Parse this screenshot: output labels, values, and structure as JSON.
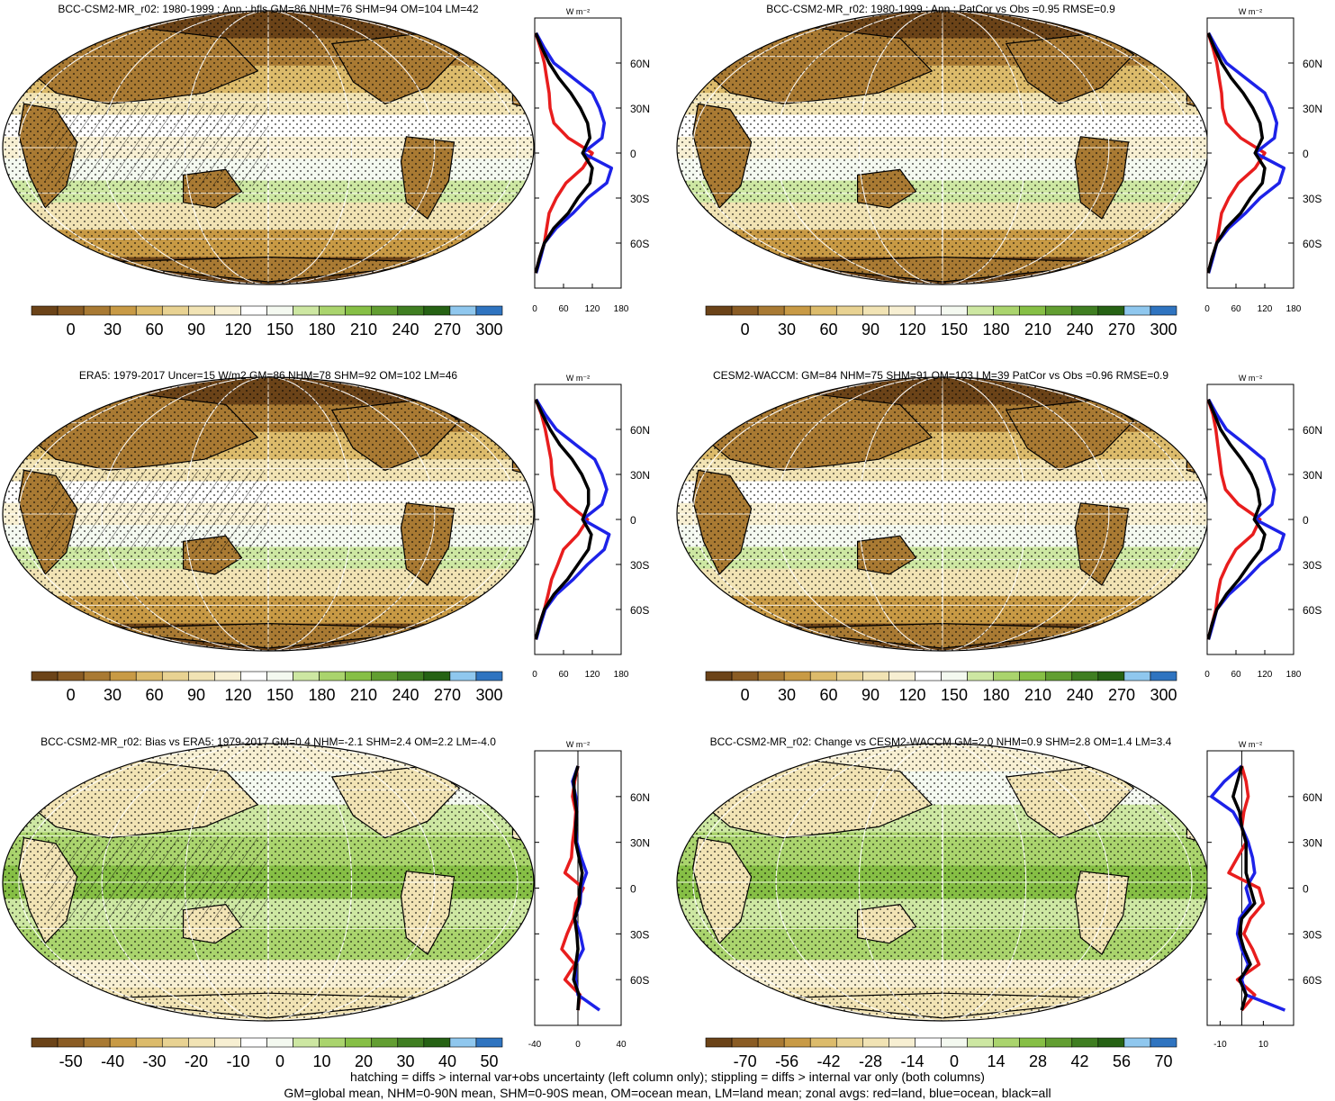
{
  "legend": {
    "line1": "hatching = diffs > internal var+obs uncertainty (left column only); stippling = diffs > internal var only (both columns)",
    "line2": "GM=global mean, NHM=0-90N mean, SHM=0-90S mean, OM=ocean mean, LM=land mean; zonal avgs: red=land, blue=ocean, black=all"
  },
  "colors": {
    "zonal_land": "#e81d1d",
    "zonal_ocean": "#1d22e8",
    "zonal_all": "#000000",
    "abs_scale": [
      "#6b4318",
      "#8a5c24",
      "#a97a33",
      "#c89a45",
      "#dcbb6b",
      "#e8d292",
      "#f1e3b4",
      "#f7efd2",
      "#ffffff",
      "#f4f9f0",
      "#cde7a2",
      "#aad46d",
      "#86bf45",
      "#629e31",
      "#3f7e21",
      "#266214",
      "#8fc7ee",
      "#2f74c0"
    ],
    "diff_scale": [
      "#6b4318",
      "#8a5c24",
      "#a97a33",
      "#c89a45",
      "#dcbb6b",
      "#e8d292",
      "#f1e3b4",
      "#f7efd2",
      "#ffffff",
      "#f4f9f0",
      "#cde7a2",
      "#aad46d",
      "#86bf45",
      "#629e31",
      "#3f7e21",
      "#266214",
      "#8fc7ee",
      "#2f74c0"
    ]
  },
  "chart_data": [
    {
      "type": "heatmap",
      "title": "BCC-CSM2-MR_r02: 1980-1999 : Ann : hfls GM=86 NHM=76 SHM=94 OM=104 LM=42",
      "colorbar_ticks": [
        "0",
        "30",
        "60",
        "90",
        "120",
        "150",
        "180",
        "210",
        "240",
        "270",
        "300"
      ],
      "zonal": {
        "unit": "W m⁻²",
        "xticks": [
          "0",
          "60",
          "120",
          "180"
        ],
        "xlim": [
          0,
          180
        ],
        "yticks": [
          "60N",
          "30N",
          "0",
          "30S",
          "60S"
        ],
        "lat": [
          80,
          70,
          60,
          50,
          40,
          30,
          20,
          10,
          0,
          -10,
          -20,
          -30,
          -40,
          -50,
          -60,
          -70,
          -80
        ],
        "land": [
          2,
          12,
          20,
          25,
          30,
          32,
          40,
          70,
          120,
          100,
          65,
          45,
          30,
          25,
          20,
          10,
          2
        ],
        "ocean": [
          3,
          20,
          40,
          80,
          120,
          135,
          145,
          140,
          100,
          160,
          150,
          110,
          80,
          45,
          20,
          12,
          3
        ],
        "all": [
          2,
          15,
          30,
          50,
          75,
          95,
          110,
          115,
          100,
          120,
          115,
          90,
          70,
          40,
          20,
          10,
          2
        ]
      }
    },
    {
      "type": "heatmap",
      "title": "BCC-CSM2-MR_r02: 1980-1999 : Ann : PatCor vs Obs =0.95 RMSE=0.9",
      "colorbar_ticks": [
        "0",
        "30",
        "60",
        "90",
        "120",
        "150",
        "180",
        "210",
        "240",
        "270",
        "300"
      ],
      "zonal": {
        "unit": "W m⁻²",
        "xticks": [
          "0",
          "60",
          "120",
          "180"
        ],
        "xlim": [
          0,
          180
        ],
        "yticks": [
          "60N",
          "30N",
          "0",
          "30S",
          "60S"
        ],
        "lat": [
          80,
          70,
          60,
          50,
          40,
          30,
          20,
          10,
          0,
          -10,
          -20,
          -30,
          -40,
          -50,
          -60,
          -70,
          -80
        ],
        "land": [
          2,
          12,
          20,
          25,
          30,
          32,
          40,
          70,
          120,
          100,
          65,
          45,
          30,
          25,
          20,
          10,
          2
        ],
        "ocean": [
          3,
          20,
          40,
          80,
          120,
          135,
          145,
          140,
          100,
          160,
          150,
          110,
          80,
          45,
          20,
          12,
          3
        ],
        "all": [
          2,
          15,
          30,
          50,
          75,
          95,
          110,
          115,
          100,
          120,
          115,
          90,
          70,
          40,
          20,
          10,
          2
        ]
      }
    },
    {
      "type": "heatmap",
      "title": "ERA5: 1979-2017 Uncer=15 W/m2 GM=86 NHM=78 SHM=92 OM=102 LM=46",
      "colorbar_ticks": [
        "0",
        "30",
        "60",
        "90",
        "120",
        "150",
        "180",
        "210",
        "240",
        "270",
        "300"
      ],
      "zonal": {
        "unit": "W m⁻²",
        "xticks": [
          "0",
          "60",
          "120",
          "180"
        ],
        "xlim": [
          0,
          180
        ],
        "yticks": [
          "60N",
          "30N",
          "0",
          "30S",
          "60S"
        ],
        "lat": [
          80,
          70,
          60,
          50,
          40,
          30,
          20,
          10,
          0,
          -10,
          -20,
          -30,
          -40,
          -50,
          -60,
          -70,
          -80
        ],
        "land": [
          2,
          14,
          22,
          28,
          34,
          36,
          42,
          70,
          110,
          90,
          60,
          48,
          35,
          28,
          20,
          10,
          2
        ],
        "ocean": [
          3,
          22,
          45,
          85,
          125,
          140,
          150,
          140,
          100,
          155,
          145,
          110,
          80,
          45,
          22,
          12,
          3
        ],
        "all": [
          2,
          16,
          32,
          52,
          78,
          98,
          112,
          112,
          100,
          118,
          112,
          90,
          68,
          40,
          20,
          10,
          2
        ]
      }
    },
    {
      "type": "heatmap",
      "title": "CESM2-WACCM: GM=84 NHM=75 SHM=91 OM=103 LM=39 PatCor vs Obs =0.96 RMSE=0.9",
      "colorbar_ticks": [
        "0",
        "30",
        "60",
        "90",
        "120",
        "150",
        "180",
        "210",
        "240",
        "270",
        "300"
      ],
      "zonal": {
        "unit": "W m⁻²",
        "xticks": [
          "0",
          "60",
          "120",
          "180"
        ],
        "xlim": [
          0,
          180
        ],
        "yticks": [
          "60N",
          "30N",
          "0",
          "30S",
          "60S"
        ],
        "lat": [
          80,
          70,
          60,
          50,
          40,
          30,
          20,
          10,
          0,
          -10,
          -20,
          -30,
          -40,
          -50,
          -60,
          -70,
          -80
        ],
        "land": [
          2,
          12,
          18,
          22,
          26,
          30,
          38,
          65,
          110,
          95,
          60,
          42,
          28,
          22,
          18,
          10,
          2
        ],
        "ocean": [
          3,
          20,
          40,
          80,
          118,
          130,
          140,
          135,
          100,
          160,
          150,
          110,
          80,
          45,
          20,
          12,
          3
        ],
        "all": [
          2,
          15,
          28,
          48,
          72,
          92,
          105,
          110,
          98,
          120,
          112,
          88,
          66,
          40,
          20,
          10,
          2
        ]
      }
    },
    {
      "type": "heatmap",
      "title": "BCC-CSM2-MR_r02: Bias vs ERA5: 1979-2017 GM=0.4 NHM=-2.1 SHM=2.4 OM=2.2 LM=-4.0",
      "colorbar_ticks": [
        "-50",
        "-40",
        "-30",
        "-20",
        "-10",
        "0",
        "10",
        "20",
        "30",
        "40",
        "50"
      ],
      "zonal": {
        "unit": "W m⁻²",
        "xticks": [
          "-40",
          "0",
          "40"
        ],
        "xlim": [
          -40,
          40
        ],
        "yticks": [
          "60N",
          "30N",
          "0",
          "30S",
          "60S"
        ],
        "lat": [
          80,
          70,
          60,
          50,
          40,
          30,
          20,
          10,
          0,
          -10,
          -20,
          -30,
          -40,
          -50,
          -60,
          -70,
          -80
        ],
        "land": [
          0,
          -3,
          -5,
          -2,
          -3,
          -5,
          -6,
          -12,
          5,
          -2,
          -4,
          -10,
          -15,
          -3,
          -12,
          2,
          0
        ],
        "ocean": [
          0,
          -5,
          -2,
          -1,
          -2,
          -1,
          3,
          8,
          3,
          2,
          -3,
          2,
          5,
          -2,
          -2,
          0,
          20
        ],
        "all": [
          0,
          -4,
          -3,
          -1,
          -2,
          -2,
          1,
          4,
          2,
          1,
          -3,
          -1,
          0,
          -2,
          -4,
          1,
          0
        ]
      }
    },
    {
      "type": "heatmap",
      "title": "BCC-CSM2-MR_r02: Change vs CESM2-WACCM GM=2.0 NHM=0.9 SHM=2.8 OM=1.4 LM=3.4",
      "colorbar_ticks": [
        "-70",
        "-56",
        "-42",
        "-28",
        "-14",
        "0",
        "14",
        "28",
        "42",
        "56",
        "70"
      ],
      "zonal": {
        "unit": "W m⁻²",
        "xticks": [
          "-10",
          "10"
        ],
        "xlim": [
          -16,
          24
        ],
        "yticks": [
          "60N",
          "30N",
          "0",
          "30S",
          "60S"
        ],
        "lat": [
          80,
          70,
          60,
          50,
          40,
          30,
          20,
          10,
          0,
          -10,
          -20,
          -30,
          -40,
          -50,
          -60,
          -70,
          -80
        ],
        "land": [
          0,
          2,
          3,
          1,
          0,
          2,
          -2,
          -6,
          8,
          10,
          4,
          1,
          5,
          8,
          -2,
          6,
          0
        ],
        "ocean": [
          0,
          -8,
          -14,
          -4,
          0,
          3,
          5,
          6,
          2,
          4,
          -1,
          -2,
          0,
          3,
          0,
          2,
          20
        ],
        "all": [
          0,
          -2,
          -4,
          -1,
          0,
          2,
          2,
          2,
          4,
          6,
          0,
          -1,
          1,
          4,
          -1,
          2,
          0
        ]
      }
    }
  ]
}
